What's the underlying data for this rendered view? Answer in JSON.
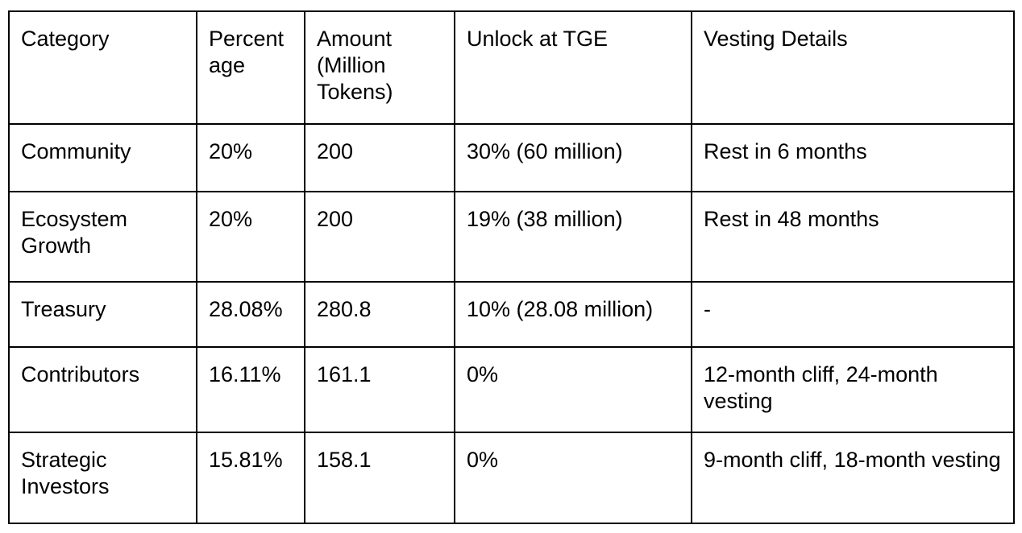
{
  "table": {
    "headers": [
      "Category",
      "Percent age",
      "Amount (Million Tokens)",
      "Unlock at TGE",
      "Vesting Details"
    ],
    "rows": [
      [
        "Community",
        "20%",
        "200",
        "30% (60 million)",
        "Rest in 6 months"
      ],
      [
        "Ecosystem Growth",
        "20%",
        "200",
        "19% (38 million)",
        "Rest in 48 months"
      ],
      [
        "Treasury",
        "28.08%",
        "280.8",
        "10% (28.08 million)",
        "-"
      ],
      [
        "Contributors",
        "16.11%",
        "161.1",
        "0%",
        "12-month cliff, 24-month vesting"
      ],
      [
        "Strategic Investors",
        "15.81%",
        "158.1",
        "0%",
        "9-month cliff, 18-month vesting"
      ]
    ]
  }
}
